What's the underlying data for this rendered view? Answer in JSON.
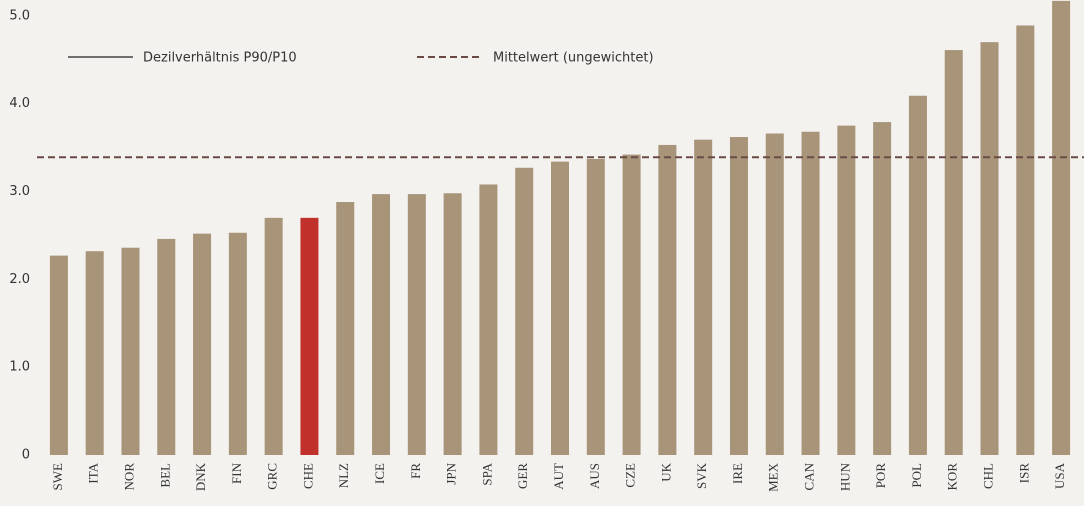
{
  "chart_data": {
    "type": "bar",
    "categories": [
      "SWE",
      "ITA",
      "NOR",
      "BEL",
      "DNK",
      "FIN",
      "GRC",
      "CHE",
      "NLZ",
      "ICE",
      "FR",
      "JPN",
      "SPA",
      "GER",
      "AUT",
      "AUS",
      "CZE",
      "UK",
      "SVK",
      "IRE",
      "MEX",
      "CAN",
      "HUN",
      "POR",
      "POL",
      "KOR",
      "CHL",
      "ISR",
      "USA"
    ],
    "series": [
      {
        "name": "Dezilverhältnis P90/P10",
        "legend_color": "#6e6e6e",
        "values": [
          2.27,
          2.32,
          2.36,
          2.46,
          2.52,
          2.53,
          2.7,
          2.7,
          2.88,
          2.97,
          2.97,
          2.98,
          3.08,
          3.27,
          3.34,
          3.37,
          3.42,
          3.53,
          3.59,
          3.62,
          3.66,
          3.68,
          3.75,
          3.79,
          4.09,
          4.61,
          4.7,
          4.89,
          5.17
        ],
        "colors": [
          "#a89478",
          "#a89478",
          "#a89478",
          "#a89478",
          "#a89478",
          "#a89478",
          "#a89478",
          "#c0312b",
          "#a89478",
          "#a89478",
          "#a89478",
          "#a89478",
          "#a89478",
          "#a89478",
          "#a89478",
          "#a89478",
          "#a89478",
          "#a89478",
          "#a89478",
          "#a89478",
          "#a89478",
          "#a89478",
          "#a89478",
          "#a89478",
          "#a89478",
          "#a89478",
          "#a89478",
          "#a89478",
          "#a89478"
        ]
      }
    ],
    "reference_line": {
      "name": "Mittelwert (ungewichtet)",
      "value": 3.39,
      "color": "#6b4a45",
      "dashed": true
    },
    "ylim": [
      0,
      5.18
    ],
    "yticks": [
      0,
      {
        "value": 1,
        "label": "1.0"
      },
      {
        "value": 2,
        "label": "2.0"
      },
      {
        "value": 3,
        "label": "3.0"
      },
      {
        "value": 4,
        "label": "4.0"
      },
      {
        "value": 5,
        "label": "5.0"
      }
    ],
    "grid": false
  }
}
